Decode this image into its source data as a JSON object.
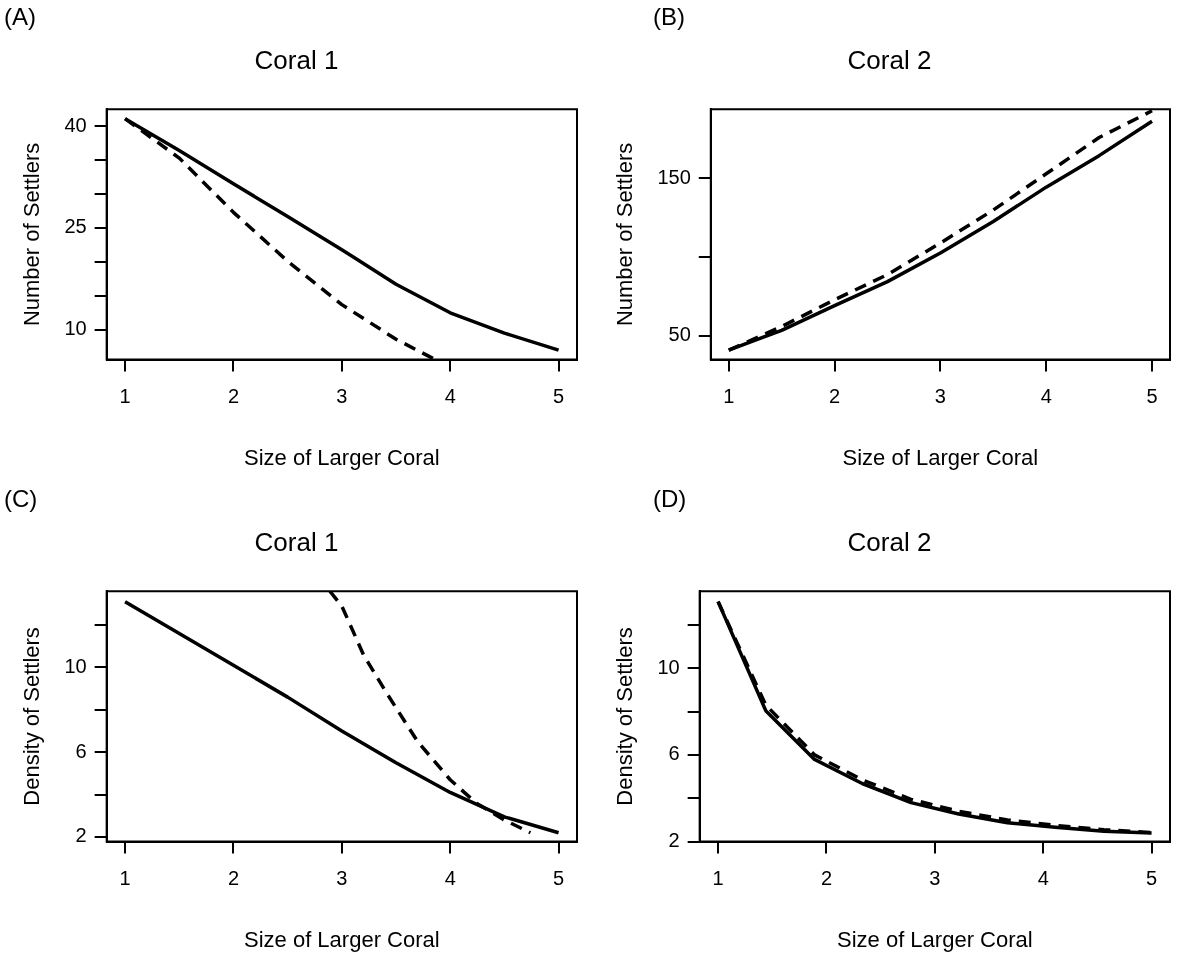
{
  "chart_data": [
    {
      "type": "line",
      "title": "Coral 1",
      "xlabel": "Size of Larger Coral",
      "ylabel": "Number of Settlers",
      "annotations": [
        "(A)"
      ],
      "xlim": [
        0.83,
        5.17
      ],
      "xticks": [
        1,
        2,
        3,
        4,
        5
      ],
      "ylim": [
        5.6,
        42.5
      ],
      "yticks": [
        10,
        {
          "value": 15,
          "label": null
        },
        {
          "value": 20,
          "label": null
        },
        25,
        {
          "value": 30,
          "label": null
        },
        {
          "value": 35,
          "label": null
        },
        40
      ],
      "grid": false,
      "legend": false,
      "series": [
        {
          "color": "#000000",
          "line_style": "solid",
          "x": [
            1,
            1.5,
            2,
            2.5,
            3,
            3.5,
            4,
            4.5,
            5
          ],
          "values": [
            41.1,
            36.4,
            31.5,
            26.7,
            21.8,
            16.7,
            12.5,
            9.5,
            7.0
          ]
        },
        {
          "color": "#000000",
          "line_style": "dashed",
          "x": [
            1,
            1.5,
            2,
            2.5,
            3,
            3.5,
            3.85
          ],
          "values": [
            41.1,
            35.3,
            27.3,
            20.1,
            13.7,
            8.6,
            5.7
          ]
        }
      ]
    },
    {
      "type": "line",
      "title": "Coral 2",
      "xlabel": "Size of Larger Coral",
      "ylabel": "Number of Settlers",
      "annotations": [
        "(B)"
      ],
      "xlim": [
        0.83,
        5.17
      ],
      "xticks": [
        1,
        2,
        3,
        4,
        5
      ],
      "ylim": [
        35,
        194
      ],
      "yticks": [
        50,
        {
          "value": 100,
          "label": null
        },
        150
      ],
      "grid": false,
      "legend": false,
      "series": [
        {
          "color": "#000000",
          "line_style": "solid",
          "x": [
            1,
            1.5,
            2,
            2.5,
            3,
            3.5,
            4,
            4.5,
            5
          ],
          "values": [
            41,
            53.6,
            69.3,
            84.5,
            102.7,
            122.7,
            144.5,
            164.5,
            186.4
          ]
        },
        {
          "color": "#000000",
          "line_style": "dashed",
          "x": [
            1,
            1.5,
            2,
            2.5,
            3,
            3.5,
            4,
            4.5,
            5
          ],
          "values": [
            41,
            56,
            73,
            89,
            109,
            130,
            153,
            176,
            193
          ]
        }
      ]
    },
    {
      "type": "line",
      "title": "Coral 1",
      "xlabel": "Size of Larger Coral",
      "ylabel": "Density of Settlers",
      "annotations": [
        "(C)"
      ],
      "xlim": [
        0.83,
        5.17
      ],
      "xticks": [
        1,
        2,
        3,
        4,
        5
      ],
      "ylim": [
        1.78,
        13.6
      ],
      "yticks": [
        2,
        {
          "value": 4,
          "label": null
        },
        6,
        {
          "value": 8,
          "label": null
        },
        10,
        {
          "value": 12,
          "label": null
        }
      ],
      "grid": false,
      "legend": false,
      "series": [
        {
          "color": "#000000",
          "line_style": "solid",
          "x": [
            1,
            1.5,
            2,
            2.5,
            3,
            3.5,
            4,
            4.5,
            5
          ],
          "values": [
            13.1,
            11.6,
            10.1,
            8.6,
            7.0,
            5.5,
            4.1,
            2.95,
            2.2
          ]
        },
        {
          "color": "#000000",
          "line_style": "dashed",
          "x": [
            2.89,
            3.0,
            3.2,
            3.4,
            3.7,
            4.0,
            4.24,
            4.5,
            4.74
          ],
          "values": [
            13.6,
            12.9,
            10.6,
            8.9,
            6.5,
            4.7,
            3.6,
            2.8,
            2.2
          ]
        }
      ]
    },
    {
      "type": "line",
      "title": "Coral 2",
      "xlabel": "Size of Larger Coral",
      "ylabel": "Density of Settlers",
      "annotations": [
        "(D)"
      ],
      "xlim": [
        0.83,
        5.17
      ],
      "xticks": [
        1,
        2,
        3,
        4,
        5
      ],
      "ylim": [
        2,
        13.55
      ],
      "yticks": [
        2,
        {
          "value": 4,
          "label": null
        },
        6,
        {
          "value": 8,
          "label": null
        },
        10,
        {
          "value": 12,
          "label": null
        }
      ],
      "grid": false,
      "legend": false,
      "series": [
        {
          "color": "#000000",
          "line_style": "solid",
          "x": [
            1,
            1.44,
            1.89,
            2.33,
            2.78,
            3.22,
            3.67,
            4.11,
            4.56,
            5
          ],
          "values": [
            13.07,
            8.04,
            5.79,
            4.68,
            3.8,
            3.27,
            2.87,
            2.66,
            2.48,
            2.4
          ]
        },
        {
          "color": "#000000",
          "line_style": "dashed",
          "x": [
            1,
            1.44,
            1.89,
            2.33,
            2.78,
            3.22,
            3.67,
            4.11,
            4.56,
            5
          ],
          "values": [
            13.07,
            8.3,
            6.0,
            4.85,
            3.95,
            3.4,
            3.0,
            2.75,
            2.55,
            2.42
          ]
        }
      ]
    }
  ]
}
